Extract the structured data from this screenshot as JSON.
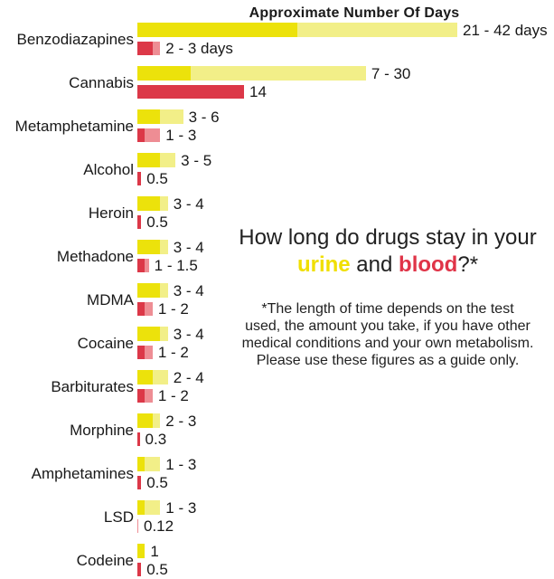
{
  "chart_data": {
    "type": "bar",
    "title": "Approximate Number Of Days",
    "orientation": "horizontal",
    "unit": "days",
    "x_axis_shown": false,
    "xlim_days": [
      0,
      42
    ],
    "series_names": [
      "urine",
      "blood"
    ],
    "colors": {
      "urine_dark": "#ece20b",
      "urine_light": "#f2ef88",
      "blood_dark": "#dc3848",
      "blood_light": "#ee8d94"
    },
    "rows": [
      {
        "drug": "Benzodiazapines",
        "urine": {
          "min": 21,
          "max": 42,
          "label": "21 - 42 days"
        },
        "blood": {
          "min": 2,
          "max": 3,
          "label": "2 - 3 days"
        }
      },
      {
        "drug": "Cannabis",
        "urine": {
          "min": 7,
          "max": 30,
          "label": "7 - 30"
        },
        "blood": {
          "min": 14,
          "max": 14,
          "label": "14"
        }
      },
      {
        "drug": "Metamphetamine",
        "urine": {
          "min": 3,
          "max": 6,
          "label": "3 - 6"
        },
        "blood": {
          "min": 1,
          "max": 3,
          "label": "1 - 3"
        }
      },
      {
        "drug": "Alcohol",
        "urine": {
          "min": 3,
          "max": 5,
          "label": "3 - 5"
        },
        "blood": {
          "min": 0.5,
          "max": 0.5,
          "label": "0.5"
        }
      },
      {
        "drug": "Heroin",
        "urine": {
          "min": 3,
          "max": 4,
          "label": "3 - 4"
        },
        "blood": {
          "min": 0.5,
          "max": 0.5,
          "label": "0.5"
        }
      },
      {
        "drug": "Methadone",
        "urine": {
          "min": 3,
          "max": 4,
          "label": "3 - 4"
        },
        "blood": {
          "min": 1,
          "max": 1.5,
          "label": "1 - 1.5"
        }
      },
      {
        "drug": "MDMA",
        "urine": {
          "min": 3,
          "max": 4,
          "label": "3 - 4"
        },
        "blood": {
          "min": 1,
          "max": 2,
          "label": "1 - 2"
        }
      },
      {
        "drug": "Cocaine",
        "urine": {
          "min": 3,
          "max": 4,
          "label": "3 - 4"
        },
        "blood": {
          "min": 1,
          "max": 2,
          "label": "1 - 2"
        }
      },
      {
        "drug": "Barbiturates",
        "urine": {
          "min": 2,
          "max": 4,
          "label": "2 - 4"
        },
        "blood": {
          "min": 1,
          "max": 2,
          "label": "1 - 2"
        }
      },
      {
        "drug": "Morphine",
        "urine": {
          "min": 2,
          "max": 3,
          "label": "2 - 3"
        },
        "blood": {
          "min": 0.3,
          "max": 0.3,
          "label": "0.3"
        }
      },
      {
        "drug": "Amphetamines",
        "urine": {
          "min": 1,
          "max": 3,
          "label": "1 - 3"
        },
        "blood": {
          "min": 0.5,
          "max": 0.5,
          "label": "0.5"
        }
      },
      {
        "drug": "LSD",
        "urine": {
          "min": 1,
          "max": 3,
          "label": "1 - 3"
        },
        "blood": {
          "min": 0.12,
          "max": 0.12,
          "label": "0.12",
          "tone": "light"
        }
      },
      {
        "drug": "Codeine",
        "urine": {
          "min": 1,
          "max": 1,
          "label": "1"
        },
        "blood": {
          "min": 0.5,
          "max": 0.5,
          "label": "0.5"
        }
      }
    ]
  },
  "heading": {
    "line1": "How long do drugs stay in your",
    "urine": "urine",
    "and": " and ",
    "blood": "blood",
    "suffix": "?*",
    "urine_color": "#f0df00",
    "blood_color": "#e03448"
  },
  "footnote": {
    "lines": [
      "*The length of time depends on the test",
      "used, the amount you take, if you have other",
      "medical conditions and your own metabolism.",
      "Please use these figures as a guide only."
    ]
  }
}
